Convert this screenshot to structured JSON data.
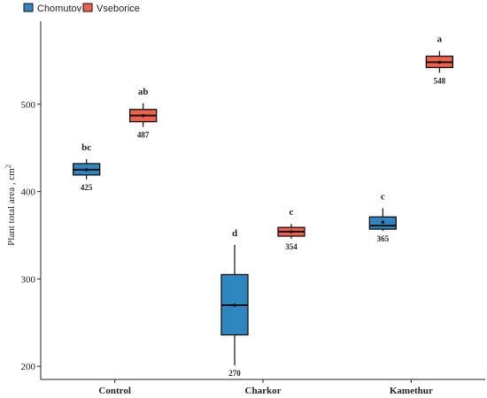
{
  "chart_data": {
    "type": "box",
    "ylabel": "Plant total area , cm",
    "ylabel_superscript": "2",
    "ylim": [
      185,
      595
    ],
    "yticks": [
      200,
      300,
      400,
      500
    ],
    "categories": [
      "Control",
      "Charkor",
      "Kamethur"
    ],
    "legend": {
      "position": "top-left",
      "entries": [
        {
          "name": "Chomutov",
          "color": "#2E86C1"
        },
        {
          "name": "Vseborice",
          "color": "#F1604A"
        }
      ]
    },
    "boxes": [
      {
        "category": "Control",
        "group": "Chomutov",
        "min": 414,
        "q1": 419,
        "median": 425,
        "q3": 432,
        "max": 437,
        "mean": 425,
        "mean_label": "425",
        "letter": "bc"
      },
      {
        "category": "Control",
        "group": "Vseborice",
        "min": 474,
        "q1": 480,
        "median": 487,
        "q3": 494,
        "max": 501,
        "mean": 487,
        "mean_label": "487",
        "letter": "ab"
      },
      {
        "category": "Charkor",
        "group": "Chomutov",
        "min": 201,
        "q1": 236,
        "median": 270,
        "q3": 305,
        "max": 339,
        "mean": 270,
        "mean_label": "270",
        "letter": "d"
      },
      {
        "category": "Charkor",
        "group": "Vseborice",
        "min": 346,
        "q1": 349,
        "median": 354,
        "q3": 359,
        "max": 363,
        "mean": 354,
        "mean_label": "354",
        "letter": "c"
      },
      {
        "category": "Kamethur",
        "group": "Chomutov",
        "min": 355,
        "q1": 357,
        "median": 361,
        "q3": 371,
        "max": 381,
        "mean": 365,
        "mean_label": "365",
        "letter": "c"
      },
      {
        "category": "Kamethur",
        "group": "Vseborice",
        "min": 536,
        "q1": 542,
        "median": 548,
        "q3": 555,
        "max": 561,
        "mean": 548,
        "mean_label": "548",
        "letter": "a"
      }
    ]
  }
}
